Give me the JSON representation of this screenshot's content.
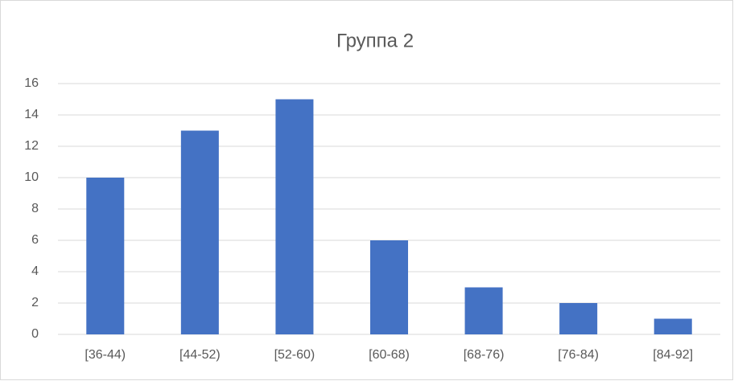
{
  "chart_data": {
    "type": "bar",
    "title": "Группа 2",
    "categories": [
      "[36-44)",
      "[44-52)",
      "[52-60)",
      "[60-68)",
      "[68-76)",
      "[76-84)",
      "[84-92]"
    ],
    "values": [
      10,
      13,
      15,
      6,
      3,
      2,
      1
    ],
    "color": "#4472c4",
    "ylim": [
      0,
      16
    ],
    "yticks": [
      0,
      2,
      4,
      6,
      8,
      10,
      12,
      14,
      16
    ],
    "grid": true
  }
}
